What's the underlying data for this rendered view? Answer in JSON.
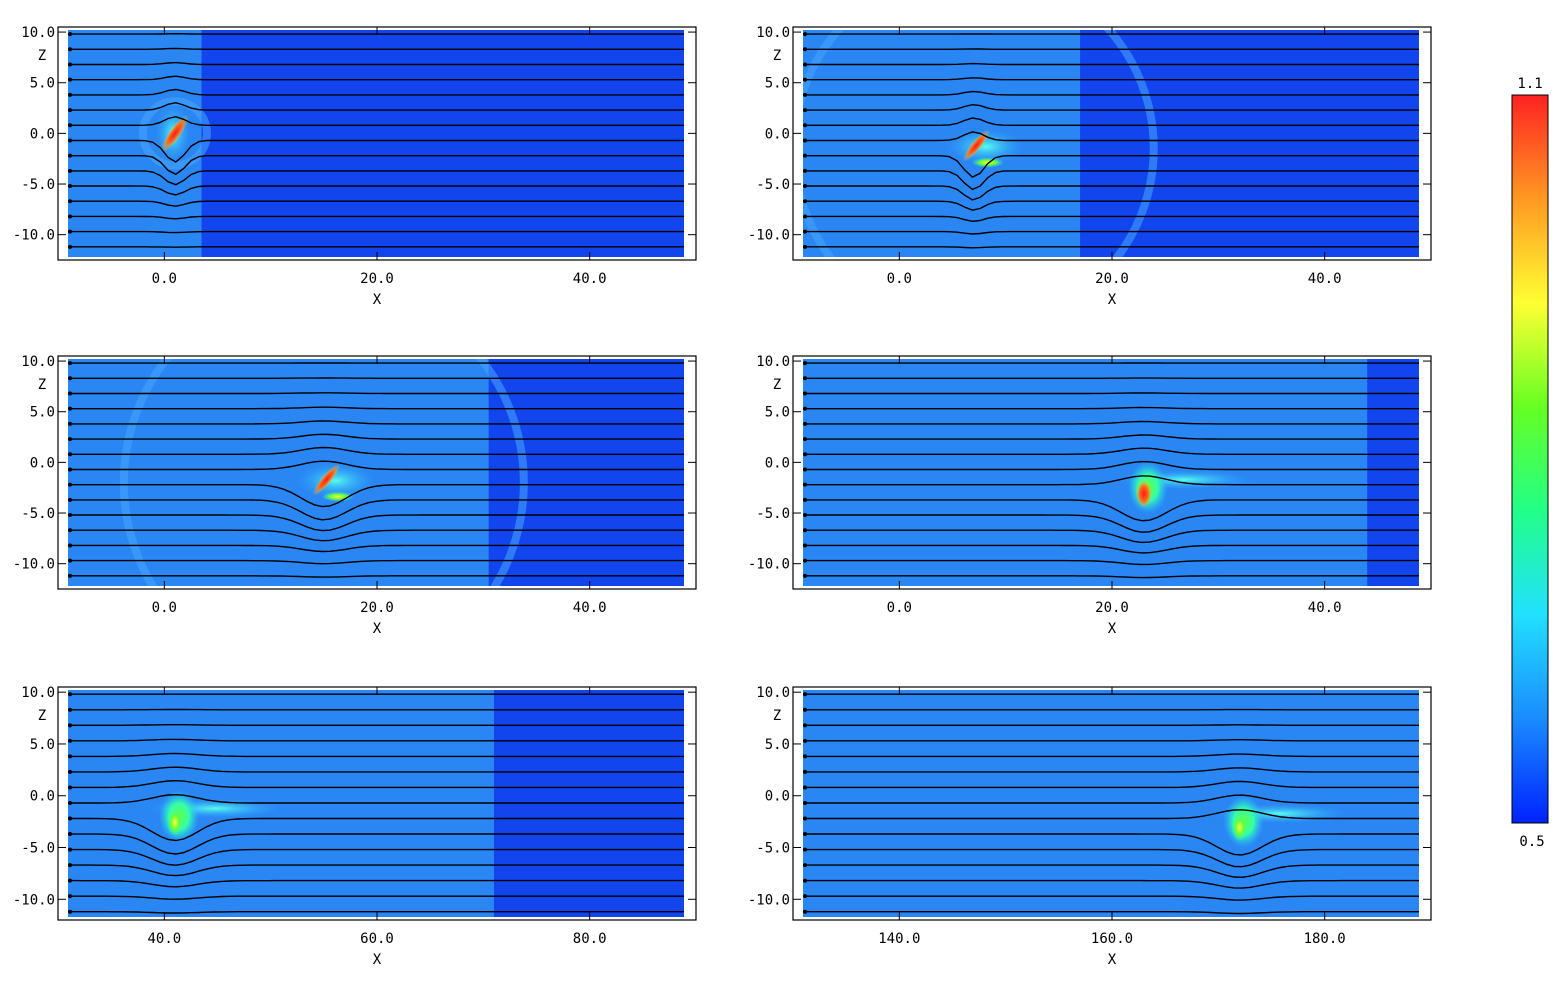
{
  "chart_data": [
    {
      "type": "heatmap",
      "title": "",
      "xlabel": "X",
      "ylabel": "Z",
      "xlim": [
        -10,
        50
      ],
      "ylim": [
        -12.5,
        10.5
      ],
      "xticks": [
        0.0,
        20.0,
        40.0
      ],
      "xtick_labels": [
        "0.0",
        "20.0",
        "40.0"
      ],
      "yticks": [
        10.0,
        5.0,
        0.0,
        -5.0,
        -10.0
      ],
      "ytick_labels": [
        "10.0",
        "5.0",
        "0.0",
        "-5.0",
        "-10.0"
      ],
      "ambient_boundary_x": 3.5,
      "blob": {
        "x": 1.0,
        "z": 0.0,
        "peak": 1.1,
        "shape": "tilted-column"
      },
      "field_lines": 15
    },
    {
      "type": "heatmap",
      "title": "",
      "xlabel": "X",
      "ylabel": "Z",
      "xlim": [
        -10,
        50
      ],
      "ylim": [
        -12.5,
        10.5
      ],
      "xticks": [
        0.0,
        20.0,
        40.0
      ],
      "xtick_labels": [
        "0.0",
        "20.0",
        "40.0"
      ],
      "yticks": [
        10.0,
        5.0,
        0.0,
        -5.0,
        -10.0
      ],
      "ytick_labels": [
        "10.0",
        "5.0",
        "0.0",
        "-5.0",
        "-10.0"
      ],
      "ambient_boundary_x": 17.0,
      "blob": {
        "x": 7.0,
        "z": -1.5,
        "peak": 1.1,
        "shape": "hook"
      },
      "field_lines": 15
    },
    {
      "type": "heatmap",
      "title": "",
      "xlabel": "X",
      "ylabel": "Z",
      "xlim": [
        -10,
        50
      ],
      "ylim": [
        -12.5,
        10.5
      ],
      "xticks": [
        0.0,
        20.0,
        40.0
      ],
      "xtick_labels": [
        "0.0",
        "20.0",
        "40.0"
      ],
      "yticks": [
        10.0,
        5.0,
        0.0,
        -5.0,
        -10.0
      ],
      "ytick_labels": [
        "10.0",
        "5.0",
        "0.0",
        "-5.0",
        "-10.0"
      ],
      "ambient_boundary_x": 30.5,
      "blob": {
        "x": 15.0,
        "z": -2.0,
        "peak": 1.1,
        "shape": "hook"
      },
      "field_lines": 15
    },
    {
      "type": "heatmap",
      "title": "",
      "xlabel": "X",
      "ylabel": "Z",
      "xlim": [
        -10,
        50
      ],
      "ylim": [
        -12.5,
        10.5
      ],
      "xticks": [
        0.0,
        20.0,
        40.0
      ],
      "xtick_labels": [
        "0.0",
        "20.0",
        "40.0"
      ],
      "yticks": [
        10.0,
        5.0,
        0.0,
        -5.0,
        -10.0
      ],
      "ytick_labels": [
        "10.0",
        "5.0",
        "0.0",
        "-5.0",
        "-10.0"
      ],
      "ambient_boundary_x": 44.0,
      "blob": {
        "x": 23.0,
        "z": -2.5,
        "peak": 1.0,
        "shape": "mushroom"
      },
      "field_lines": 15
    },
    {
      "type": "heatmap",
      "title": "",
      "xlabel": "X",
      "ylabel": "Z",
      "xlim": [
        30,
        90
      ],
      "ylim": [
        -12,
        10.5
      ],
      "xticks": [
        40.0,
        60.0,
        80.0
      ],
      "xtick_labels": [
        "40.0",
        "60.0",
        "80.0"
      ],
      "yticks": [
        10.0,
        5.0,
        0.0,
        -5.0,
        -10.0
      ],
      "ytick_labels": [
        "10.0",
        "5.0",
        "0.0",
        "-5.0",
        "-10.0"
      ],
      "ambient_boundary_x": 71.0,
      "blob": {
        "x": 41.0,
        "z": -2.0,
        "peak": 0.85,
        "shape": "mushroom"
      },
      "field_lines": 15
    },
    {
      "type": "heatmap",
      "title": "",
      "xlabel": "X",
      "ylabel": "Z",
      "xlim": [
        130,
        190
      ],
      "ylim": [
        -12,
        10.5
      ],
      "xticks": [
        140.0,
        160.0,
        180.0
      ],
      "xtick_labels": [
        "140.0",
        "160.0",
        "180.0"
      ],
      "yticks": [
        10.0,
        5.0,
        0.0,
        -5.0,
        -10.0
      ],
      "ytick_labels": [
        "10.0",
        "5.0",
        "0.0",
        "-5.0",
        "-10.0"
      ],
      "ambient_boundary_x": null,
      "blob": {
        "x": 172.0,
        "z": -2.5,
        "peak": 0.8,
        "shape": "mushroom"
      },
      "field_lines": 15
    }
  ],
  "colorbar": {
    "max_label": "1.1",
    "min_label": "0.5",
    "vmax": 1.1,
    "vmin": 0.5,
    "colors": [
      "#0022ff",
      "#1a8cff",
      "#22e0ff",
      "#22ff88",
      "#66ff22",
      "#ffff33",
      "#ff9922",
      "#ff2222"
    ]
  },
  "colors": {
    "ambient": "#2a86f3",
    "unperturbed": "#1245ee",
    "field_line": "#000000",
    "frame": "#000000"
  }
}
